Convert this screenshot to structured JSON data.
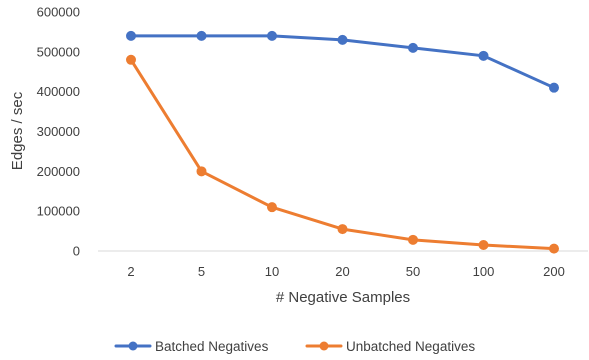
{
  "chart_data": {
    "type": "line",
    "categories": [
      "2",
      "5",
      "10",
      "20",
      "50",
      "100",
      "200"
    ],
    "series": [
      {
        "name": "Batched Negatives",
        "color": "#4472C4",
        "values": [
          540000,
          540000,
          540000,
          530000,
          510000,
          490000,
          410000
        ]
      },
      {
        "name": "Unbatched Negatives",
        "color": "#ED7D31",
        "values": [
          480000,
          200000,
          110000,
          55000,
          28000,
          15000,
          6000
        ]
      }
    ],
    "y_ticks": [
      "600000",
      "500000",
      "400000",
      "300000",
      "200000",
      "100000",
      "0"
    ],
    "xlabel": "# Negative Samples",
    "ylabel": "Edges / sec",
    "ylim": [
      0,
      600000
    ],
    "grid": false,
    "legend_position": "bottom"
  }
}
